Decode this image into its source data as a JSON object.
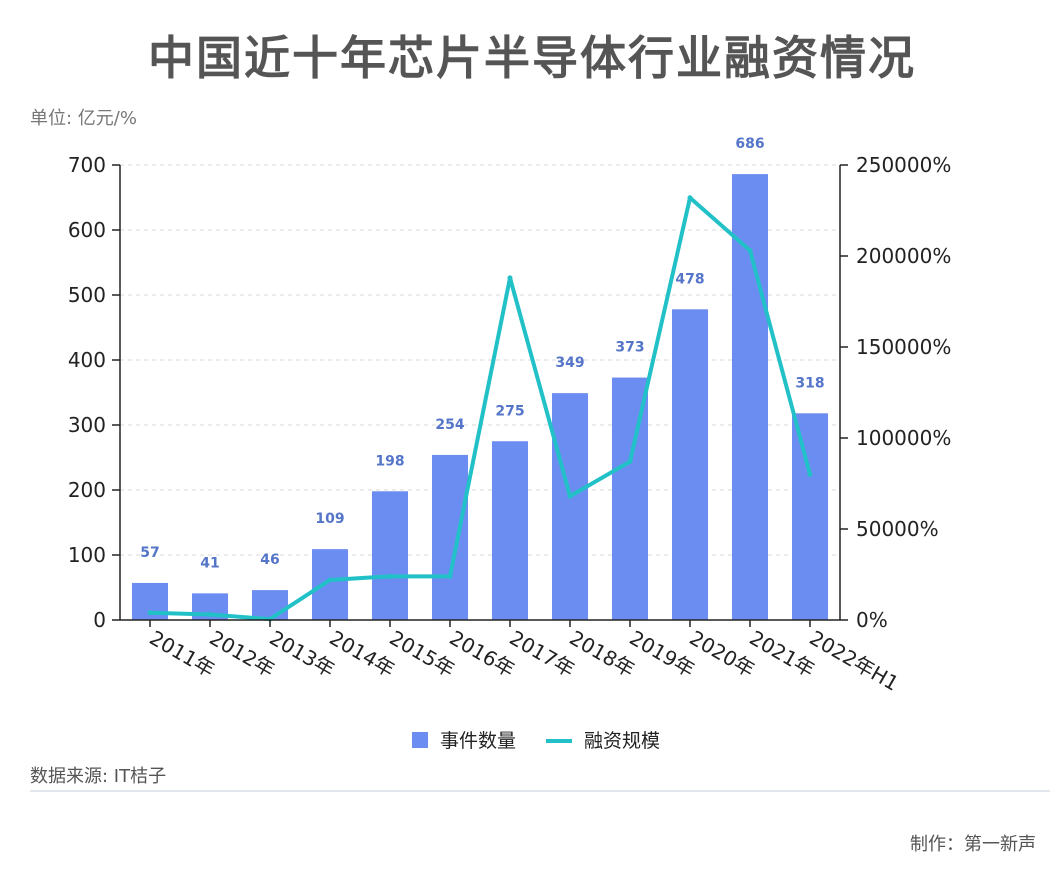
{
  "title": "中国近十年芯片半导体行业融资情况",
  "unit_label": "单位: 亿元/%",
  "source_label": "数据来源: IT桔子",
  "credit_label": "制作：第一新声",
  "colors": {
    "bar": "#6b8cf0",
    "line": "#22c1c8",
    "label": "#5575c8",
    "grid": "#d9d9d9",
    "axis": "#222222"
  },
  "chart_data": {
    "type": "bar",
    "title": "中国近十年芯片半导体行业融资情况",
    "categories": [
      "2011年",
      "2012年",
      "2013年",
      "2014年",
      "2015年",
      "2016年",
      "2017年",
      "2018年",
      "2019年",
      "2020年",
      "2021年",
      "2022年H1"
    ],
    "series": [
      {
        "name": "事件数量",
        "type": "bar",
        "axis": "left",
        "values": [
          57,
          41,
          46,
          109,
          198,
          254,
          275,
          349,
          373,
          478,
          686,
          318
        ]
      },
      {
        "name": "融资规模",
        "type": "line",
        "axis": "right",
        "values": [
          4000,
          3000,
          500,
          22000,
          24000,
          24000,
          188000,
          68000,
          87000,
          232000,
          203000,
          80000
        ]
      }
    ],
    "y_left": {
      "min": 0,
      "max": 700,
      "ticks": [
        0,
        100,
        200,
        300,
        400,
        500,
        600,
        700
      ]
    },
    "y_right": {
      "min": 0,
      "max": 250000,
      "ticks": [
        0,
        50000,
        100000,
        150000,
        200000,
        250000
      ],
      "suffix": "%"
    },
    "legend_position": "bottom-center",
    "grid": true
  }
}
